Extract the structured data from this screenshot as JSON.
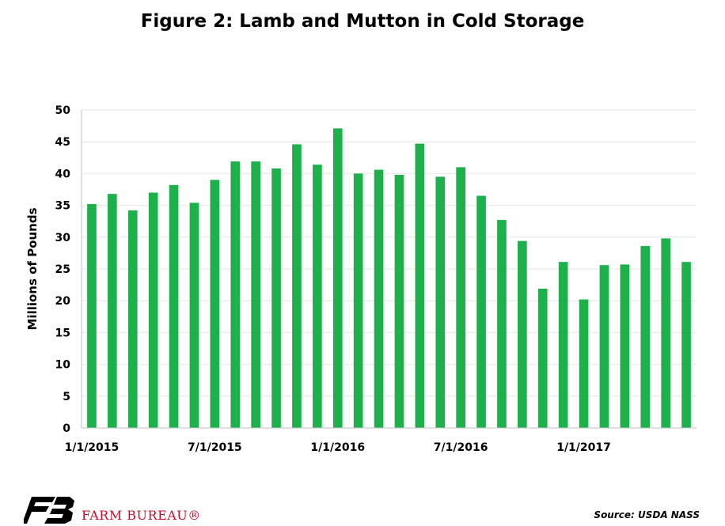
{
  "title": "Figure 2: Lamb and Mutton in Cold Storage",
  "source": "Source: USDA NASS",
  "logo_text": "FARM BUREAU®",
  "colors": {
    "bar": "#1db04b",
    "grid": "#e6e6e6",
    "logo_red": "#c8102e"
  },
  "chart_data": {
    "type": "bar",
    "title": "Figure 2: Lamb and Mutton in Cold Storage",
    "ylabel": "Millions of Pounds",
    "xlabel": "",
    "ylim": [
      0,
      50
    ],
    "yticks": [
      0,
      5,
      10,
      15,
      20,
      25,
      30,
      35,
      40,
      45,
      50
    ],
    "xtick_labels": [
      {
        "index": 0,
        "label": "1/1/2015"
      },
      {
        "index": 6,
        "label": "7/1/2015"
      },
      {
        "index": 12,
        "label": "1/1/2016"
      },
      {
        "index": 18,
        "label": "7/1/2016"
      },
      {
        "index": 24,
        "label": "1/1/2017"
      }
    ],
    "categories": [
      "1/1/2015",
      "2/1/2015",
      "3/1/2015",
      "4/1/2015",
      "5/1/2015",
      "6/1/2015",
      "7/1/2015",
      "8/1/2015",
      "9/1/2015",
      "10/1/2015",
      "11/1/2015",
      "12/1/2015",
      "1/1/2016",
      "2/1/2016",
      "3/1/2016",
      "4/1/2016",
      "5/1/2016",
      "6/1/2016",
      "7/1/2016",
      "8/1/2016",
      "9/1/2016",
      "10/1/2016",
      "11/1/2016",
      "12/1/2016",
      "1/1/2017",
      "2/1/2017",
      "3/1/2017",
      "4/1/2017",
      "5/1/2017",
      "6/1/2017"
    ],
    "values": [
      35.2,
      36.8,
      34.2,
      37.0,
      38.2,
      35.4,
      39.0,
      41.9,
      41.9,
      40.8,
      44.6,
      41.4,
      47.1,
      40.0,
      40.6,
      39.8,
      44.7,
      39.5,
      41.0,
      36.5,
      32.7,
      29.4,
      21.9,
      26.1,
      20.2,
      25.6,
      25.7,
      28.6,
      29.8,
      26.1
    ],
    "grid": true,
    "legend": "none"
  }
}
